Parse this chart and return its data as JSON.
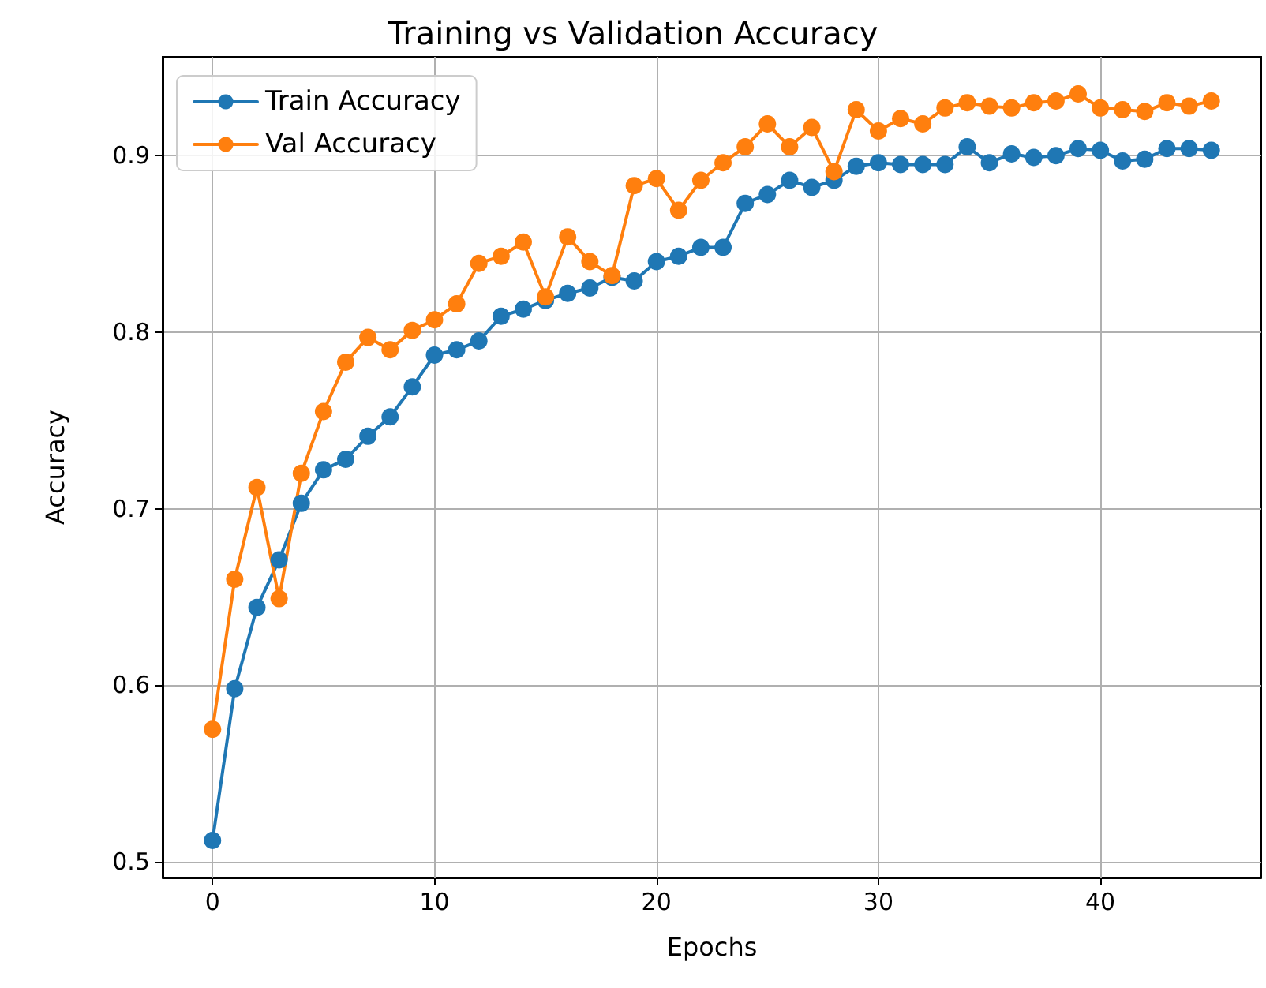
{
  "chart_data": {
    "type": "line",
    "title": "Training vs Validation Accuracy",
    "xlabel": "Epochs",
    "ylabel": "Accuracy",
    "x": [
      0,
      1,
      2,
      3,
      4,
      5,
      6,
      7,
      8,
      9,
      10,
      11,
      12,
      13,
      14,
      15,
      16,
      17,
      18,
      19,
      20,
      21,
      22,
      23,
      24,
      25,
      26,
      27,
      28,
      29,
      30,
      31,
      32,
      33,
      34,
      35,
      36,
      37,
      38,
      39,
      40,
      41,
      42,
      43,
      44,
      45
    ],
    "series": [
      {
        "name": "Train Accuracy",
        "color": "#1f77b4",
        "values": [
          0.512,
          0.598,
          0.644,
          0.671,
          0.703,
          0.722,
          0.728,
          0.741,
          0.752,
          0.769,
          0.787,
          0.79,
          0.795,
          0.809,
          0.813,
          0.818,
          0.822,
          0.825,
          0.831,
          0.829,
          0.84,
          0.843,
          0.848,
          0.848,
          0.873,
          0.878,
          0.886,
          0.882,
          0.886,
          0.894,
          0.896,
          0.895,
          0.895,
          0.895,
          0.905,
          0.896,
          0.901,
          0.899,
          0.9,
          0.904,
          0.903,
          0.897,
          0.898,
          0.904,
          0.904,
          0.903
        ]
      },
      {
        "name": "Val Accuracy",
        "color": "#ff7f0e",
        "values": [
          0.575,
          0.66,
          0.712,
          0.649,
          0.72,
          0.755,
          0.783,
          0.797,
          0.79,
          0.801,
          0.807,
          0.816,
          0.839,
          0.843,
          0.851,
          0.82,
          0.854,
          0.84,
          0.832,
          0.883,
          0.887,
          0.869,
          0.886,
          0.896,
          0.905,
          0.918,
          0.905,
          0.916,
          0.891,
          0.926,
          0.914,
          0.921,
          0.918,
          0.927,
          0.93,
          0.928,
          0.927,
          0.93,
          0.931,
          0.935,
          0.927,
          0.926,
          0.925,
          0.93,
          0.928,
          0.931
        ]
      }
    ],
    "xlim": [
      -2.25,
      47.25
    ],
    "xticks": [
      0,
      10,
      20,
      30,
      40
    ],
    "ylim": [
      0.491,
      0.956
    ],
    "yticks": [
      0.5,
      0.6,
      0.7,
      0.8,
      0.9
    ],
    "grid": true,
    "legend": "top left",
    "marker": "circle",
    "line_style": "solid"
  }
}
